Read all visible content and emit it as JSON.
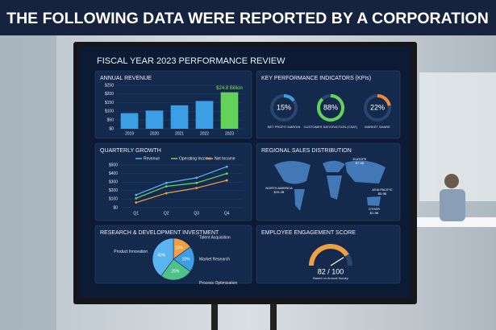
{
  "caption": "THE FOLLOWING DATA WERE REPORTED BY A CORPORATION",
  "dashboard_title": "FISCAL YEAR 2023 PERFORMANCE REVIEW",
  "annual_revenue": {
    "type": "bar",
    "title": "ANNUAL REVENUE",
    "categories": [
      "2019",
      "2020",
      "2021",
      "2022",
      "2023"
    ],
    "values": [
      90,
      105,
      135,
      160,
      210
    ],
    "colors": [
      "#3b9fe6",
      "#3b9fe6",
      "#3b9fe6",
      "#3b9fe6",
      "#62d25a"
    ],
    "annotation": "$24.8 Billion",
    "ylim": [
      0,
      250
    ],
    "yticks": [
      {
        "value": 0,
        "label": "$0"
      },
      {
        "value": 50,
        "label": "$50"
      },
      {
        "value": 100,
        "label": "$100"
      },
      {
        "value": 150,
        "label": "$150"
      },
      {
        "value": 200,
        "label": "$200"
      },
      {
        "value": 250,
        "label": "$250"
      }
    ]
  },
  "kpis": {
    "type": "gauge",
    "title": "KEY PERFORMANCE INDICATORS (KPIs)",
    "names": [
      "NET PROFIT MARGIN",
      "CUSTOMER SATISFACTION (CSAT)",
      "MARKET SHARE"
    ],
    "values": [
      15,
      88,
      22
    ],
    "value_labels": [
      "15%",
      "88%",
      "22%"
    ],
    "colors": [
      "#3b9fe6",
      "#62d25a",
      "#f08a3c"
    ],
    "max": 100
  },
  "quarterly_growth": {
    "type": "line",
    "title": "QUARTERLY GROWTH",
    "categories": [
      "Q1",
      "Q2",
      "Q3",
      "Q4"
    ],
    "series": [
      {
        "name": "Revenue",
        "color": "#5ab4f0",
        "values": [
          150,
          290,
          350,
          480
        ]
      },
      {
        "name": "Operating Income",
        "color": "#6fd36a",
        "values": [
          110,
          250,
          290,
          400
        ]
      },
      {
        "name": "Net Income",
        "color": "#f0a040",
        "values": [
          60,
          170,
          230,
          320
        ]
      }
    ],
    "ylim": [
      0,
      500
    ],
    "yticks": [
      {
        "value": 0,
        "label": "$0"
      },
      {
        "value": 100,
        "label": "$100"
      },
      {
        "value": 200,
        "label": "$200"
      },
      {
        "value": 300,
        "label": "$300"
      },
      {
        "value": 400,
        "label": "$400"
      },
      {
        "value": 500,
        "label": "$500"
      }
    ]
  },
  "regional_sales": {
    "title": "REGIONAL SALES DISTRIBUTION",
    "regions": [
      {
        "name": "NORTH AMERICA",
        "sales": "$15.2B"
      },
      {
        "name": "EUROPE",
        "sales": "$7.1B"
      },
      {
        "name": "ASIA PACIFIC",
        "sales": "$5.9B"
      },
      {
        "name": "OTHER",
        "sales": "$1.9B"
      }
    ]
  },
  "rd_investment": {
    "type": "pie",
    "title": "RESEARCH & DEVELOPMENT INVESTMENT",
    "categories": [
      "Talent Acquisition",
      "Market Research",
      "Process Optimization",
      "Product Innovation"
    ],
    "values": [
      15,
      20,
      25,
      40
    ],
    "value_labels": [
      "15%",
      "20%",
      "25%",
      "40%"
    ],
    "colors": [
      "#f0a040",
      "#3b9fe6",
      "#4fc28a",
      "#5ab4f0"
    ]
  },
  "engagement": {
    "title": "EMPLOYEE ENGAGEMENT SCORE",
    "score": 82,
    "scale_max": 100,
    "score_label": "82 / 100",
    "note": "Based on Annual Survey"
  }
}
